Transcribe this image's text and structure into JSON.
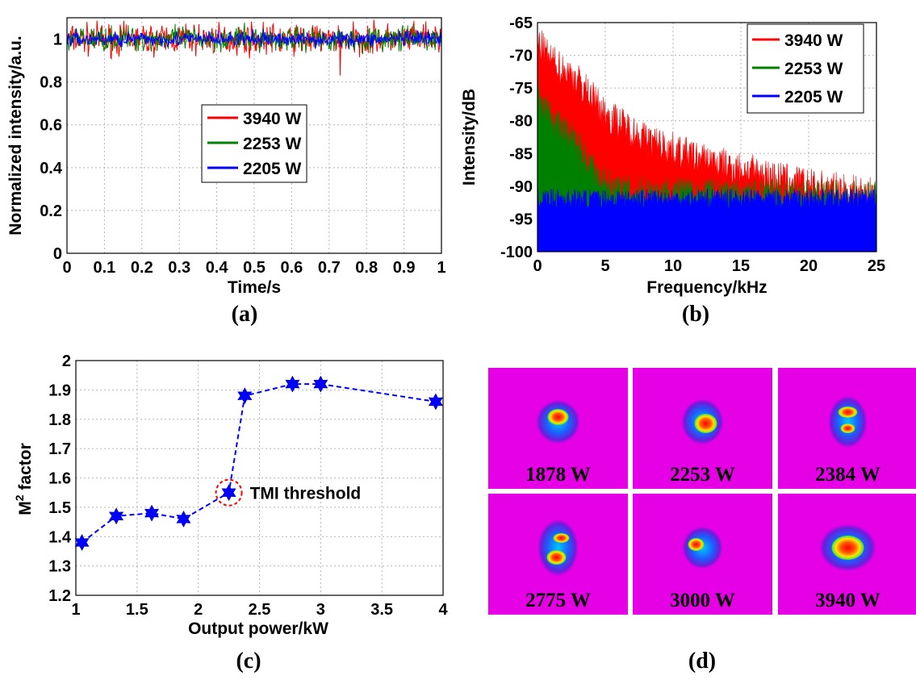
{
  "chart_data": [
    {
      "panel": "(a)",
      "type": "line",
      "xlabel": "Time/s",
      "ylabel": "Normalized intensity/a.u.",
      "xlim": [
        0,
        1
      ],
      "ylim": [
        0,
        1.1
      ],
      "xticks": [
        "0",
        "0.1",
        "0.2",
        "0.3",
        "0.4",
        "0.5",
        "0.6",
        "0.7",
        "0.8",
        "0.9",
        "1"
      ],
      "yticks": [
        "0",
        "0.2",
        "0.4",
        "0.6",
        "0.8",
        "1"
      ],
      "grid": true,
      "legend_position": "center",
      "series": [
        {
          "name": "3940 W",
          "color": "#ff0000",
          "mean": 1.0,
          "band": [
            0.9,
            1.1
          ],
          "min_spike": 0.83
        },
        {
          "name": "2253 W",
          "color": "#008000",
          "mean": 1.0,
          "band": [
            0.92,
            1.08
          ]
        },
        {
          "name": "2205 W",
          "color": "#0000ff",
          "mean": 1.0,
          "band": [
            0.95,
            1.05
          ]
        }
      ]
    },
    {
      "panel": "(b)",
      "type": "area",
      "xlabel": "Frequency/kHz",
      "ylabel": "Intensity/dB",
      "xlim": [
        0,
        25
      ],
      "ylim": [
        -100,
        -65
      ],
      "xticks": [
        "0",
        "5",
        "10",
        "15",
        "20",
        "25"
      ],
      "yticks": [
        "-65",
        "-70",
        "-75",
        "-80",
        "-85",
        "-90",
        "-95",
        "-100"
      ],
      "grid": true,
      "legend_position": "top-right",
      "series": [
        {
          "name": "3940 W",
          "color": "#ff0000",
          "x": [
            0,
            1,
            3,
            5,
            8,
            12,
            16,
            20,
            25
          ],
          "y": [
            -68,
            -71,
            -74,
            -79,
            -83,
            -86,
            -88,
            -90,
            -91.5
          ]
        },
        {
          "name": "2253 W",
          "color": "#008000",
          "x": [
            0,
            1,
            3,
            4.5,
            6,
            25
          ],
          "y": [
            -76,
            -80,
            -84,
            -89,
            -91,
            -92
          ]
        },
        {
          "name": "2205 W",
          "color": "#0000ff",
          "x": [
            0,
            25
          ],
          "y": [
            -92,
            -92
          ]
        }
      ]
    },
    {
      "panel": "(c)",
      "type": "line",
      "xlabel": "Output power/kW",
      "ylabel_main": "M",
      "ylabel_sup": "2",
      "ylabel_rest": " factor",
      "xlim": [
        1,
        4
      ],
      "ylim": [
        1.2,
        2.0
      ],
      "xticks": [
        "1",
        "1.5",
        "2",
        "2.5",
        "3",
        "3.5",
        "4"
      ],
      "yticks": [
        "1.2",
        "1.3",
        "1.4",
        "1.5",
        "1.6",
        "1.7",
        "1.8",
        "1.9",
        "2"
      ],
      "grid": true,
      "series": [
        {
          "color": "#0000ff",
          "x": [
            1.05,
            1.33,
            1.62,
            1.88,
            2.25,
            2.38,
            2.77,
            3.0,
            3.94
          ],
          "y": [
            1.38,
            1.47,
            1.48,
            1.46,
            1.55,
            1.88,
            1.92,
            1.92,
            1.86
          ]
        }
      ],
      "annotation": {
        "text": "TMI threshold",
        "x": 2.25,
        "y": 1.55
      }
    }
  ],
  "panel_labels": {
    "a": "(a)",
    "b": "(b)",
    "c": "(c)",
    "d": "(d)"
  },
  "beam_profiles": [
    {
      "label": "1878 W"
    },
    {
      "label": "2253 W"
    },
    {
      "label": "2384 W"
    },
    {
      "label": "2775 W"
    },
    {
      "label": "3000 W"
    },
    {
      "label": "3940 W"
    }
  ]
}
